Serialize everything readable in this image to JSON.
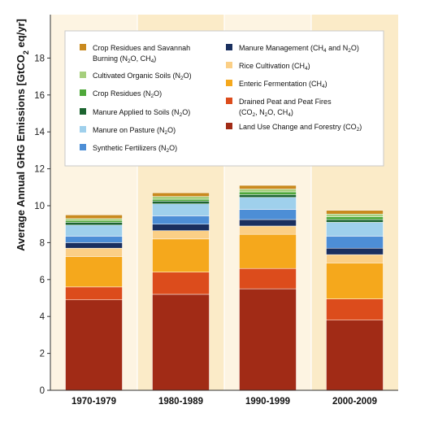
{
  "chart_data": {
    "type": "bar",
    "stacked": true,
    "ylabel": "Average Annual GHG Emissions [GtCO₂ eq/yr]",
    "ylim": [
      0,
      20
    ],
    "yticks": [
      0,
      2,
      4,
      6,
      8,
      10,
      12,
      14,
      16,
      18
    ],
    "grid": false,
    "legend_position": "top",
    "categories": [
      "1970-1979",
      "1980-1989",
      "1990-1999",
      "2000-2009"
    ],
    "series": [
      {
        "key": "luc",
        "name": "Land Use Change and Forestry (CO2)",
        "color": "#a12b16",
        "values": [
          4.9,
          5.2,
          5.5,
          3.8
        ]
      },
      {
        "key": "peat",
        "name": "Drained Peat and Peat Fires (CO2, N2O, CH4)",
        "color": "#dc4c1c",
        "values": [
          0.7,
          1.2,
          1.1,
          1.15
        ]
      },
      {
        "key": "ent",
        "name": "Enteric Fermentation (CH4)",
        "color": "#f5a81c",
        "values": [
          1.65,
          1.8,
          1.85,
          1.95
        ]
      },
      {
        "key": "rice",
        "name": "Rice Cultivation (CH4)",
        "color": "#fbcf86",
        "values": [
          0.45,
          0.45,
          0.45,
          0.45
        ]
      },
      {
        "key": "mm",
        "name": "Manure Management (CH4 and N2O)",
        "color": "#1a2f5f",
        "values": [
          0.3,
          0.35,
          0.35,
          0.35
        ]
      },
      {
        "key": "syn",
        "name": "Synthetic Fertilizers (N2O)",
        "color": "#4d8ed6",
        "values": [
          0.35,
          0.45,
          0.55,
          0.65
        ]
      },
      {
        "key": "past",
        "name": "Manure on Pasture (N2O)",
        "color": "#9fd0ec",
        "values": [
          0.6,
          0.65,
          0.65,
          0.75
        ]
      },
      {
        "key": "soil",
        "name": "Manure Applied to Soils (N2O)",
        "color": "#1c6430",
        "values": [
          0.15,
          0.15,
          0.15,
          0.15
        ]
      },
      {
        "key": "crop",
        "name": "Crop Residues (N2O)",
        "color": "#4fa83a",
        "values": [
          0.1,
          0.1,
          0.15,
          0.15
        ]
      },
      {
        "key": "org",
        "name": "Cultivated Organic Soils (N2O)",
        "color": "#a6cf7d",
        "values": [
          0.1,
          0.15,
          0.15,
          0.15
        ]
      },
      {
        "key": "burn",
        "name": "Crop Residues and Savannah Burning (N2O, CH4)",
        "color": "#c98a1f",
        "values": [
          0.2,
          0.2,
          0.2,
          0.2
        ]
      }
    ],
    "legend_columns": [
      [
        "burn",
        "org",
        "crop",
        "soil",
        "past",
        "syn"
      ],
      [
        "mm",
        "rice",
        "ent",
        "peat",
        "luc"
      ]
    ]
  }
}
